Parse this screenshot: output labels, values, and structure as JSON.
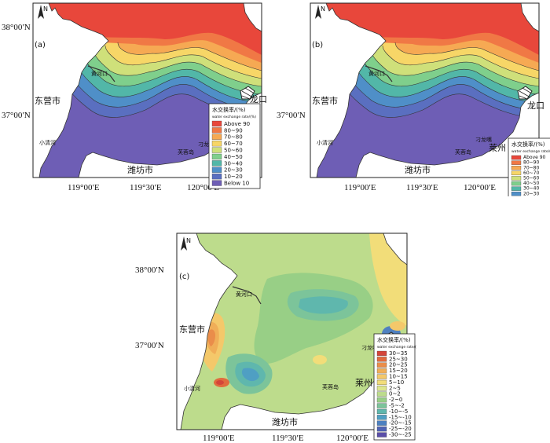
{
  "panels": {
    "a": {
      "letter": "(a)"
    },
    "b": {
      "letter": "(b)"
    },
    "c": {
      "letter": "(c)"
    }
  },
  "axes": {
    "lat_top": "38°00′N",
    "lat_mid": "37°00′N",
    "lon_1": "119°00′E",
    "lon_2": "119°30′E",
    "lon_3": "120°00′E"
  },
  "place_names": {
    "dongying": "东营市",
    "weifang": "潍坊市",
    "laizhou": "莱州",
    "longkou": "龙口",
    "huanghekou": "黄河口",
    "zimaibei": "淄脉沟",
    "xiaoqinghe": "小清河",
    "laohekou": "老河口",
    "guanghekou": "广河口",
    "furongdao": "芙蓉岛",
    "diaolongzui": "刁龙嘴"
  },
  "legend_ab": {
    "title": "水交换率/(%)",
    "subtitle": "water exchange rate/(%)",
    "items": [
      {
        "label": "Above 90",
        "color": "#e8473b"
      },
      {
        "label": "80~90",
        "color": "#f07845"
      },
      {
        "label": "70~80",
        "color": "#f6a953"
      },
      {
        "label": "60~70",
        "color": "#f7d667"
      },
      {
        "label": "50~60",
        "color": "#cfe07a"
      },
      {
        "label": "40~50",
        "color": "#7fcf8c"
      },
      {
        "label": "30~40",
        "color": "#52b7a8"
      },
      {
        "label": "20~30",
        "color": "#4f8fc8"
      },
      {
        "label": "10~20",
        "color": "#5a6fc0"
      },
      {
        "label": "Below 10",
        "color": "#6e5eb5"
      }
    ]
  },
  "legend_c": {
    "title": "水交换率/(%)",
    "subtitle": "water exchange rate/(%)",
    "items": [
      {
        "label": "30~35",
        "color": "#d4453a"
      },
      {
        "label": "25~30",
        "color": "#e16a3e"
      },
      {
        "label": "20~25",
        "color": "#ea8d4a"
      },
      {
        "label": "15~20",
        "color": "#f0ae58"
      },
      {
        "label": "10~15",
        "color": "#f4c86a"
      },
      {
        "label": "5~10",
        "color": "#f2dd79"
      },
      {
        "label": "2~5",
        "color": "#dde68c"
      },
      {
        "label": "0~2",
        "color": "#bddc8c"
      },
      {
        "label": "-2~0",
        "color": "#98cf86"
      },
      {
        "label": "-5~-2",
        "color": "#7cc49a"
      },
      {
        "label": "-10~-5",
        "color": "#5fb7ad"
      },
      {
        "label": "-15~-10",
        "color": "#4f9fc3"
      },
      {
        "label": "-20~-15",
        "color": "#4c80c0"
      },
      {
        "label": "-25~-20",
        "color": "#4f63b4"
      },
      {
        "label": "-30~-25",
        "color": "#5a4ea8"
      }
    ]
  }
}
